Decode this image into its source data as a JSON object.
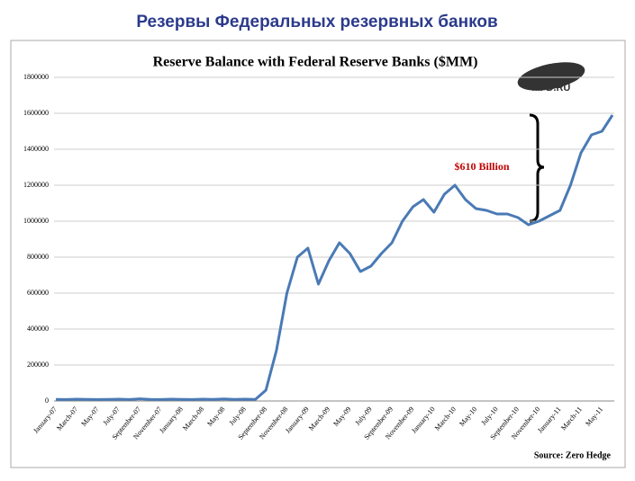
{
  "chart_data": {
    "type": "line",
    "heading": "Резервы Федеральных резервных банков",
    "title": "Reserve Balance with Federal Reserve Banks ($MM)",
    "annotation": "$610 Billion",
    "source": "Source: Zero Hedge",
    "logo": "MFD.RU",
    "categories": [
      "January-07",
      null,
      "March-07",
      null,
      "May-07",
      null,
      "July-07",
      null,
      "September-07",
      null,
      "November-07",
      null,
      "January-08",
      null,
      "March-08",
      null,
      "May-08",
      null,
      "July-08",
      null,
      "September-08",
      null,
      "November-08",
      null,
      "January-09",
      null,
      "March-09",
      null,
      "May-09",
      null,
      "July-09",
      null,
      "September-09",
      null,
      "November-09",
      null,
      "January-10",
      null,
      "March-10",
      null,
      "May-10",
      null,
      "July-10",
      null,
      "September-10",
      null,
      "November-10",
      null,
      "January-11",
      null,
      "March-11",
      null,
      "May-11",
      null
    ],
    "series": [
      {
        "name": "Reserve Balance",
        "color": "#4a7ab5",
        "values": [
          9000,
          8000,
          10000,
          9000,
          8000,
          9000,
          10000,
          8000,
          12000,
          9000,
          8000,
          10000,
          9000,
          8000,
          10000,
          9000,
          11000,
          9000,
          10000,
          9000,
          60000,
          280000,
          600000,
          800000,
          850000,
          650000,
          780000,
          880000,
          820000,
          720000,
          750000,
          820000,
          880000,
          1000000,
          1080000,
          1120000,
          1050000,
          1150000,
          1200000,
          1120000,
          1070000,
          1060000,
          1040000,
          1040000,
          1020000,
          980000,
          1000000,
          1030000,
          1060000,
          1200000,
          1380000,
          1480000,
          1500000,
          1590000
        ]
      }
    ],
    "ylim": [
      0,
      1800000
    ],
    "yticks": [
      0,
      200000,
      400000,
      600000,
      800000,
      1000000,
      1200000,
      1400000,
      1600000,
      1800000
    ],
    "grid": true
  }
}
